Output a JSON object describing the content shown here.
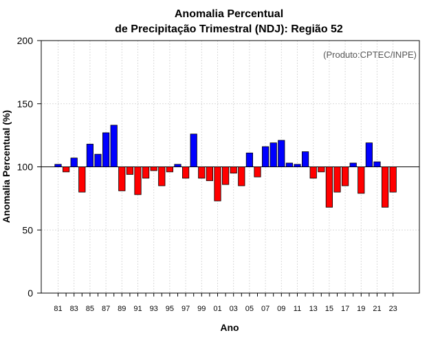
{
  "chart_data": {
    "type": "bar",
    "title_line1": "Anomalia Percentual",
    "title_line2": "de Precipitação Trimestral (NDJ): Região 52",
    "xlabel": "Ano",
    "ylabel": "Anomalia Percentual (%)",
    "credit": "(Produto:CPTEC/INPE)",
    "ylim": [
      0,
      200
    ],
    "yticks": [
      0,
      50,
      100,
      150,
      200
    ],
    "baseline": 100,
    "x_tick_labels": [
      "81",
      "83",
      "85",
      "87",
      "89",
      "91",
      "93",
      "95",
      "97",
      "99",
      "01",
      "03",
      "05",
      "07",
      "09",
      "11",
      "13",
      "15",
      "17",
      "19",
      "21",
      "23"
    ],
    "colors": {
      "above": "#0000ff",
      "below": "#ff0000",
      "grid": "#d9d9d9"
    },
    "categories": [
      "1981",
      "1982",
      "1983",
      "1984",
      "1985",
      "1986",
      "1987",
      "1988",
      "1989",
      "1990",
      "1991",
      "1992",
      "1993",
      "1994",
      "1995",
      "1996",
      "1997",
      "1998",
      "1999",
      "2000",
      "2001",
      "2002",
      "2003",
      "2004",
      "2005",
      "2006",
      "2007",
      "2008",
      "2009",
      "2010",
      "2011",
      "2012",
      "2013",
      "2014",
      "2015",
      "2016",
      "2017",
      "2018",
      "2019",
      "2020",
      "2021",
      "2022",
      "2023"
    ],
    "values": [
      102,
      96,
      107,
      80,
      118,
      110,
      127,
      133,
      81,
      94,
      78,
      91,
      97,
      85,
      96,
      102,
      91,
      126,
      91,
      89,
      73,
      86,
      95,
      85,
      111,
      92,
      116,
      119,
      121,
      103,
      102,
      112,
      91,
      96,
      68,
      80,
      85,
      103,
      79,
      119,
      104,
      68,
      80
    ]
  }
}
